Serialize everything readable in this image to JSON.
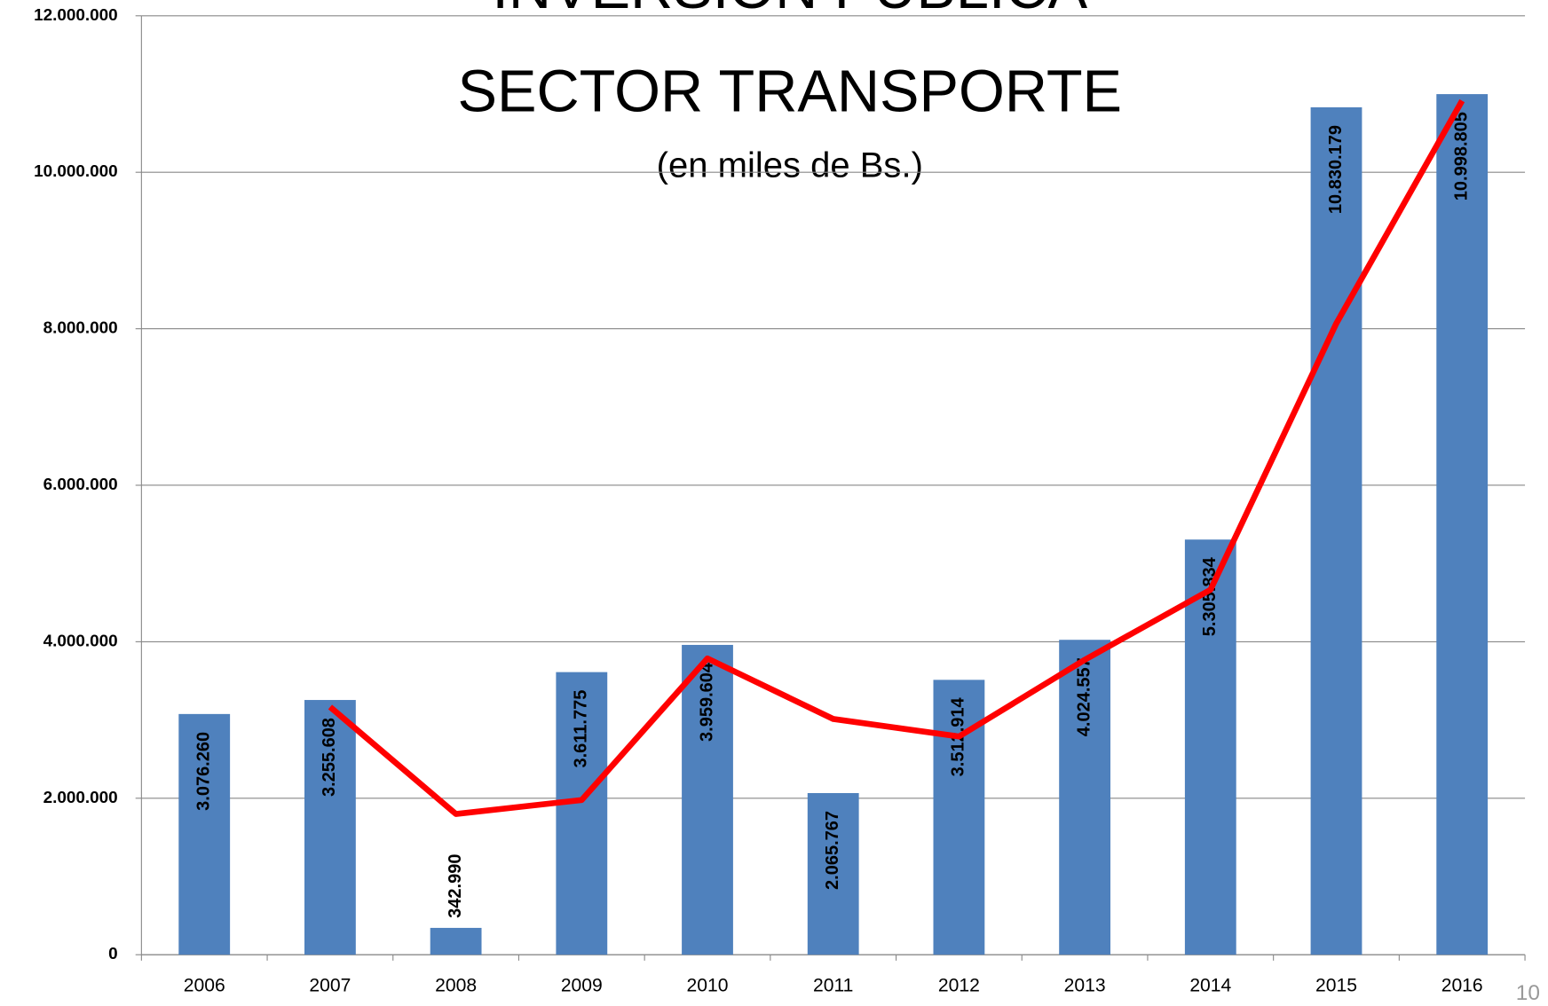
{
  "chart_data": {
    "type": "bar",
    "title": "INVERSIÓN PÚBLICA",
    "subtitle": "SECTOR TRANSPORTE",
    "unit_note": "(en miles de Bs.)",
    "page_number": "10",
    "categories": [
      "2006",
      "2007",
      "2008",
      "2009",
      "2010",
      "2011",
      "2012",
      "2013",
      "2014",
      "2015",
      "2016"
    ],
    "values": [
      3076260,
      3255608,
      342990,
      3611775,
      3959604,
      2065767,
      3512914,
      4024557,
      5305834,
      10830179,
      10998805
    ],
    "value_labels": [
      "3.076.260",
      "3.255.608",
      "342.990",
      "3.611.775",
      "3.959.604",
      "2.065.767",
      "3.512.914",
      "4.024.557",
      "5.305.834",
      "10.830.179",
      "10.998.805"
    ],
    "color": "#4f81bd",
    "trend": {
      "color": "#ff0000",
      "values": [
        null,
        3166000,
        1799000,
        1977000,
        3786000,
        3013000,
        2789000,
        3769000,
        4665000,
        8068000,
        10914000
      ]
    },
    "ylim": [
      0,
      12000000
    ],
    "yticks": [
      0,
      {
        "value": 2000000,
        "label": "2.000.000"
      },
      {
        "value": 4000000,
        "label": "4.000.000"
      },
      {
        "value": 6000000,
        "label": "6.000.000"
      },
      {
        "value": 8000000,
        "label": "8.000.000"
      },
      {
        "value": 10000000,
        "label": "10.000.000"
      },
      {
        "value": 12000000,
        "label": "12.000.000"
      }
    ],
    "grid": true
  }
}
